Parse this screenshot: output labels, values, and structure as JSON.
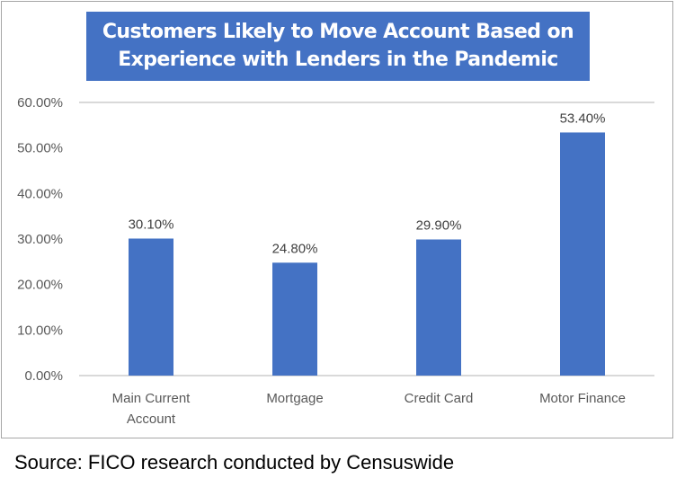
{
  "chart_data": {
    "type": "bar",
    "title": "Customers Likely to Move Account Based on Experience with Lenders in the Pandemic",
    "categories": [
      "Main Current Account",
      "Mortgage",
      "Credit Card",
      "Motor Finance"
    ],
    "category_lines": [
      [
        "Main Current",
        "Account"
      ],
      [
        "Mortgage"
      ],
      [
        "Credit Card"
      ],
      [
        "Motor Finance"
      ]
    ],
    "values": [
      30.1,
      24.8,
      29.9,
      53.4
    ],
    "data_labels": [
      "30.10%",
      "24.80%",
      "29.90%",
      "53.40%"
    ],
    "ylim": [
      0,
      60
    ],
    "yticks": [
      "0.00%",
      "10.00%",
      "20.00%",
      "30.00%",
      "40.00%",
      "50.00%",
      "60.00%"
    ],
    "xlabel": "",
    "ylabel": "",
    "bar_color": "#4472c4",
    "title_background": "#4472c4",
    "grid": false
  },
  "source": "Source: FICO research conducted by Censuswide"
}
